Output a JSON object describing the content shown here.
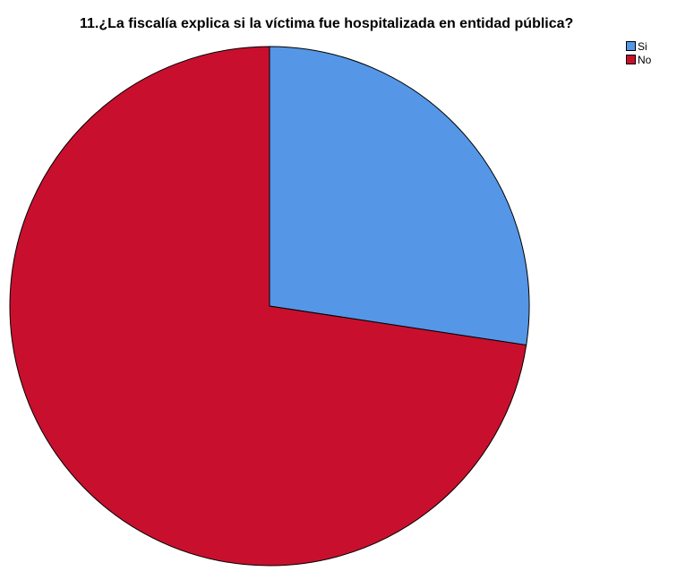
{
  "chart_data": {
    "type": "pie",
    "title": "11.¿La fiscalía explica si la víctima fue hospitalizada en entidad pública?",
    "categories": [
      "Si",
      "No"
    ],
    "values": [
      27.4,
      72.6
    ],
    "colors": [
      "#5596e6",
      "#c8102e"
    ],
    "legend_position": "top-right",
    "start_angle": "12 o'clock",
    "direction": "clockwise"
  }
}
